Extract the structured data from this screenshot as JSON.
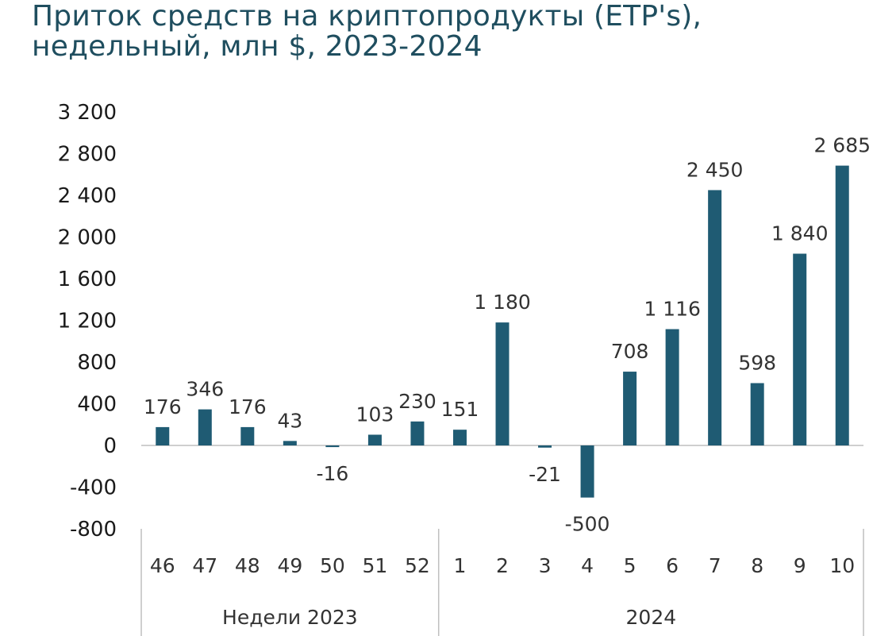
{
  "title_line1": "Приток средств на криптопродукты (ETP's),",
  "title_line2": "недельный, млн $, 2023-2024",
  "chart_data": {
    "type": "bar",
    "title": "Приток средств на криптопродукты (ETP's), недельный, млн $, 2023-2024",
    "categories": [
      "46",
      "47",
      "48",
      "49",
      "50",
      "51",
      "52",
      "1",
      "2",
      "3",
      "4",
      "5",
      "6",
      "7",
      "8",
      "9",
      "10"
    ],
    "values": [
      176,
      346,
      176,
      43,
      -16,
      103,
      230,
      151,
      1180,
      -21,
      -500,
      708,
      1116,
      2450,
      598,
      1840,
      2685
    ],
    "data_labels": [
      "176",
      "346",
      "176",
      "43",
      "-16",
      "103",
      "230",
      "151",
      "1 180",
      "-21",
      "-500",
      "708",
      "1 116",
      "2 450",
      "598",
      "1 840",
      "2 685"
    ],
    "groups": [
      {
        "label": "Недели 2023",
        "categories": [
          "46",
          "47",
          "48",
          "49",
          "50",
          "51",
          "52"
        ]
      },
      {
        "label": "2024",
        "categories": [
          "1",
          "2",
          "3",
          "4",
          "5",
          "6",
          "7",
          "8",
          "9",
          "10"
        ]
      }
    ],
    "yticks": [
      3200,
      2800,
      2400,
      2000,
      1600,
      1200,
      800,
      400,
      0,
      -400,
      -800
    ],
    "ytick_labels": [
      "3 200",
      "2 800",
      "2 400",
      "2 000",
      "1 600",
      "1 200",
      "800",
      "400",
      "0",
      "-400",
      "-800"
    ],
    "ylim": [
      -800,
      3200
    ],
    "bar_color": "#1f5b73",
    "grid": false,
    "legend": "none"
  }
}
